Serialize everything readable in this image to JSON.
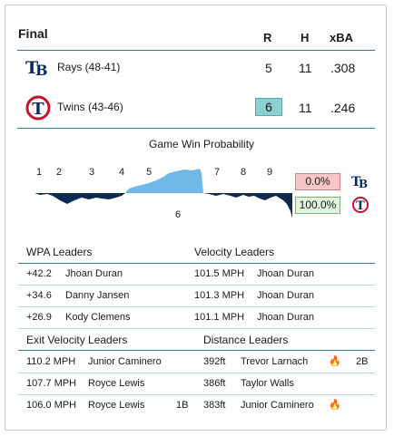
{
  "header": {
    "status": "Final",
    "col_r": "R",
    "col_h": "H",
    "col_xba": "xBA"
  },
  "teams": [
    {
      "name": "Rays (48-41)",
      "r": "5",
      "h": "11",
      "xba": ".308",
      "logo": "TB"
    },
    {
      "name": "Twins (43-46)",
      "r": "6",
      "h": "11",
      "xba": ".246",
      "logo": "twins-logo"
    }
  ],
  "win_prob": {
    "title": "Game Win Probability",
    "innings": [
      "1",
      "2",
      "3",
      "4",
      "5",
      "6",
      "7",
      "8",
      "9"
    ],
    "rays_prob": "0.0%",
    "twins_prob": "100.0%",
    "colors": {
      "rays": "#6fb8e8",
      "twins": "#0e2a4f",
      "rays_box": "#f6c5c5",
      "twins_box": "#dff3df"
    }
  },
  "wpa": {
    "title": "WPA Leaders",
    "rows": [
      {
        "value": "+42.2",
        "player": "Jhoan Duran"
      },
      {
        "value": "+34.6",
        "player": "Danny Jansen"
      },
      {
        "value": "+26.9",
        "player": "Kody Clemens"
      }
    ]
  },
  "velocity": {
    "title": "Velocity Leaders",
    "rows": [
      {
        "value": "101.5 MPH",
        "player": "Jhoan Duran"
      },
      {
        "value": "101.3 MPH",
        "player": "Jhoan Duran"
      },
      {
        "value": "101.1 MPH",
        "player": "Jhoan Duran"
      }
    ]
  },
  "exit_velocity": {
    "title": "Exit Velocity Leaders",
    "rows": [
      {
        "value": "110.2 MPH",
        "player": "Junior Caminero",
        "result": ""
      },
      {
        "value": "107.7 MPH",
        "player": "Royce Lewis",
        "result": ""
      },
      {
        "value": "106.0 MPH",
        "player": "Royce Lewis",
        "result": "1B"
      }
    ]
  },
  "distance": {
    "title": "Distance Leaders",
    "rows": [
      {
        "value": "392ft",
        "player": "Trevor Larnach",
        "icon": "fire-icon",
        "result": "2B"
      },
      {
        "value": "386ft",
        "player": "Taylor Walls",
        "icon": "",
        "result": ""
      },
      {
        "value": "383ft",
        "player": "Junior Caminero",
        "icon": "fire-icon",
        "result": ""
      }
    ]
  }
}
